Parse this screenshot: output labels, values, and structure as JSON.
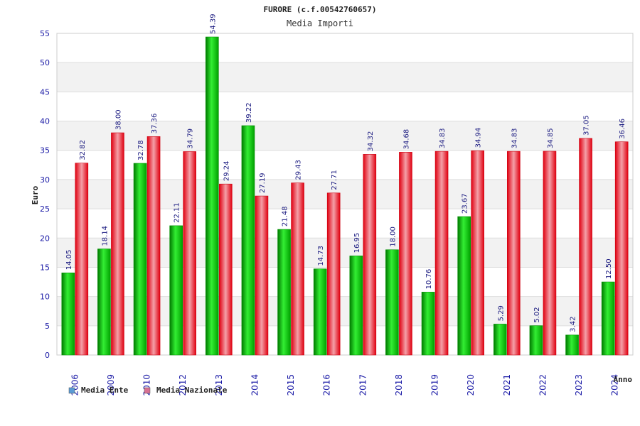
{
  "chart_data": {
    "type": "bar",
    "title": "FURORE (c.f.00542760657)",
    "subtitle": "Media Importi",
    "xlabel": "Anno",
    "ylabel": "Euro",
    "ylim": [
      0,
      55
    ],
    "yticks": [
      "0",
      "5",
      "10",
      "15",
      "20",
      "25",
      "30",
      "35",
      "40",
      "45",
      "50",
      "55"
    ],
    "categories": [
      "2006",
      "2009",
      "2010",
      "2012",
      "2013",
      "2014",
      "2015",
      "2016",
      "2017",
      "2018",
      "2019",
      "2020",
      "2021",
      "2022",
      "2023",
      "2024"
    ],
    "series": [
      {
        "name": "Media Ente",
        "color": "#00b000",
        "legend_color": "#5b9bd5",
        "values": [
          14.05,
          18.14,
          32.78,
          22.11,
          54.39,
          39.22,
          21.48,
          14.73,
          16.95,
          18.0,
          10.76,
          23.67,
          5.29,
          5.02,
          3.42,
          12.5
        ],
        "labels": [
          "14.05",
          "18.14",
          "32.78",
          "22.11",
          "54.39",
          "39.22",
          "21.48",
          "14.73",
          "16.95",
          "18.00",
          "10.76",
          "23.67",
          "5.29",
          "5.02",
          "3.42",
          "12.50"
        ]
      },
      {
        "name": "Media Nazionale",
        "color": "#e8101e",
        "legend_color": "#d87093",
        "values": [
          32.82,
          38.0,
          37.36,
          34.79,
          29.24,
          27.19,
          29.43,
          27.71,
          34.32,
          34.68,
          34.83,
          34.94,
          34.83,
          34.85,
          37.05,
          36.46
        ],
        "labels": [
          "32.82",
          "38.00",
          "37.36",
          "34.79",
          "29.24",
          "27.19",
          "29.43",
          "27.71",
          "34.32",
          "34.68",
          "34.83",
          "34.94",
          "34.83",
          "34.85",
          "37.05",
          "36.46"
        ]
      }
    ],
    "grid": true,
    "legend_position": "bottom-left"
  }
}
